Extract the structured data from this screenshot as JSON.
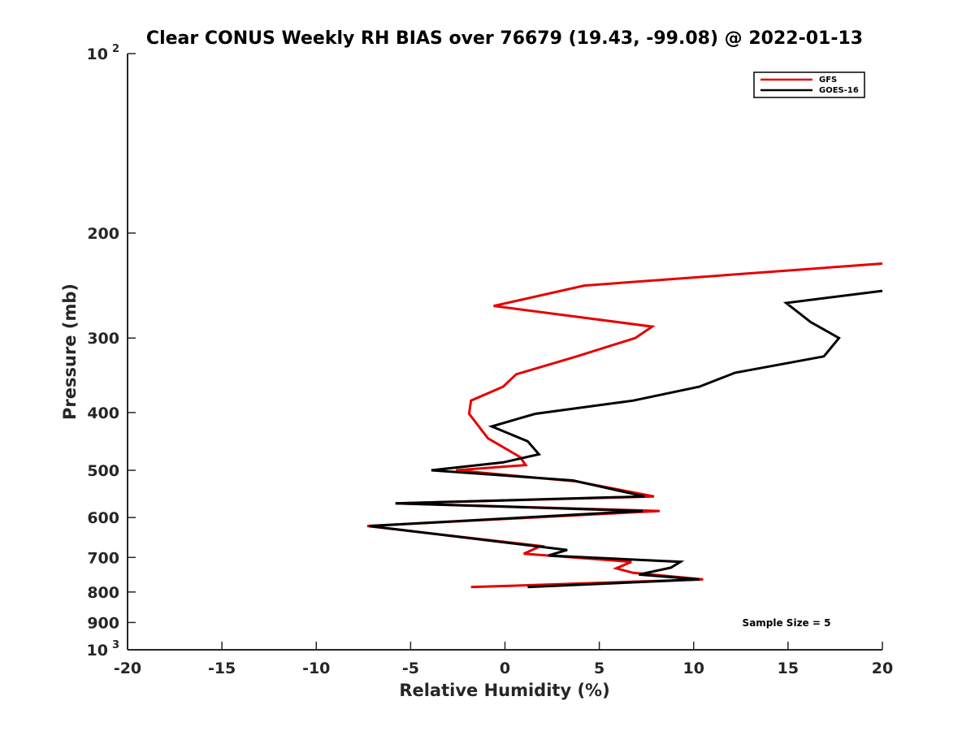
{
  "chart_data": {
    "type": "line",
    "title": "Clear CONUS Weekly RH BIAS over 76679 (19.43, -99.08) @ 2022-01-13",
    "xlabel": "Relative Humidity (%)",
    "ylabel": "Pressure (mb)",
    "xlim": [
      -20,
      20
    ],
    "ylim": [
      100,
      1000
    ],
    "y_scale": "log",
    "y_reversed": true,
    "grid": false,
    "legend_position": "top-right",
    "x_ticks": [
      -20,
      -15,
      -10,
      -5,
      0,
      5,
      10,
      15,
      20
    ],
    "x_tick_labels": [
      "-20",
      "-15",
      "-10",
      "-5",
      "0",
      "5",
      "10",
      "15",
      "20"
    ],
    "y_ticks": [
      100,
      200,
      300,
      400,
      500,
      600,
      700,
      800,
      900,
      1000
    ],
    "y_tick_labels": [
      {
        "base": "10",
        "exp": "2"
      },
      {
        "base": "200"
      },
      {
        "base": "300"
      },
      {
        "base": "400"
      },
      {
        "base": "500"
      },
      {
        "base": "600"
      },
      {
        "base": "700"
      },
      {
        "base": "800"
      },
      {
        "base": "900"
      },
      {
        "base": "10",
        "exp": "3"
      }
    ],
    "annotation": "Sample Size = 5",
    "series": [
      {
        "name": "GFS",
        "color": "#e60000",
        "points": [
          {
            "x": 20.0,
            "p": 225
          },
          {
            "x": 4.2,
            "p": 245
          },
          {
            "x": -0.6,
            "p": 265
          },
          {
            "x": 7.8,
            "p": 287
          },
          {
            "x": 6.9,
            "p": 300
          },
          {
            "x": 3.8,
            "p": 322
          },
          {
            "x": 0.6,
            "p": 345
          },
          {
            "x": -0.1,
            "p": 362
          },
          {
            "x": -1.8,
            "p": 382
          },
          {
            "x": -1.9,
            "p": 402
          },
          {
            "x": -0.9,
            "p": 442
          },
          {
            "x": 0.8,
            "p": 475
          },
          {
            "x": 1.1,
            "p": 490
          },
          {
            "x": -2.6,
            "p": 500
          },
          {
            "x": 3.8,
            "p": 522
          },
          {
            "x": 7.9,
            "p": 553
          },
          {
            "x": -5.8,
            "p": 568
          },
          {
            "x": 8.2,
            "p": 585
          },
          {
            "x": -7.3,
            "p": 620
          },
          {
            "x": 1.9,
            "p": 670
          },
          {
            "x": 1.0,
            "p": 690
          },
          {
            "x": 6.7,
            "p": 712
          },
          {
            "x": 5.9,
            "p": 730
          },
          {
            "x": 6.8,
            "p": 743
          },
          {
            "x": 10.5,
            "p": 762
          },
          {
            "x": -1.8,
            "p": 785
          }
        ]
      },
      {
        "name": "GOES-16",
        "color": "#000000",
        "points": [
          {
            "x": 20.0,
            "p": 250
          },
          {
            "x": 14.9,
            "p": 262
          },
          {
            "x": 16.2,
            "p": 282
          },
          {
            "x": 17.7,
            "p": 300
          },
          {
            "x": 16.9,
            "p": 322
          },
          {
            "x": 12.2,
            "p": 343
          },
          {
            "x": 10.3,
            "p": 362
          },
          {
            "x": 6.8,
            "p": 382
          },
          {
            "x": 1.6,
            "p": 402
          },
          {
            "x": -0.7,
            "p": 422
          },
          {
            "x": 1.2,
            "p": 447
          },
          {
            "x": 1.8,
            "p": 470
          },
          {
            "x": -0.1,
            "p": 485
          },
          {
            "x": -3.9,
            "p": 500
          },
          {
            "x": 3.6,
            "p": 520
          },
          {
            "x": 7.4,
            "p": 553
          },
          {
            "x": -5.8,
            "p": 568
          },
          {
            "x": 7.3,
            "p": 585
          },
          {
            "x": -7.2,
            "p": 620
          },
          {
            "x": 3.3,
            "p": 680
          },
          {
            "x": 2.3,
            "p": 695
          },
          {
            "x": 9.3,
            "p": 712
          },
          {
            "x": 8.8,
            "p": 728
          },
          {
            "x": 7.1,
            "p": 748
          },
          {
            "x": 10.3,
            "p": 762
          },
          {
            "x": 1.2,
            "p": 785
          }
        ]
      }
    ]
  }
}
